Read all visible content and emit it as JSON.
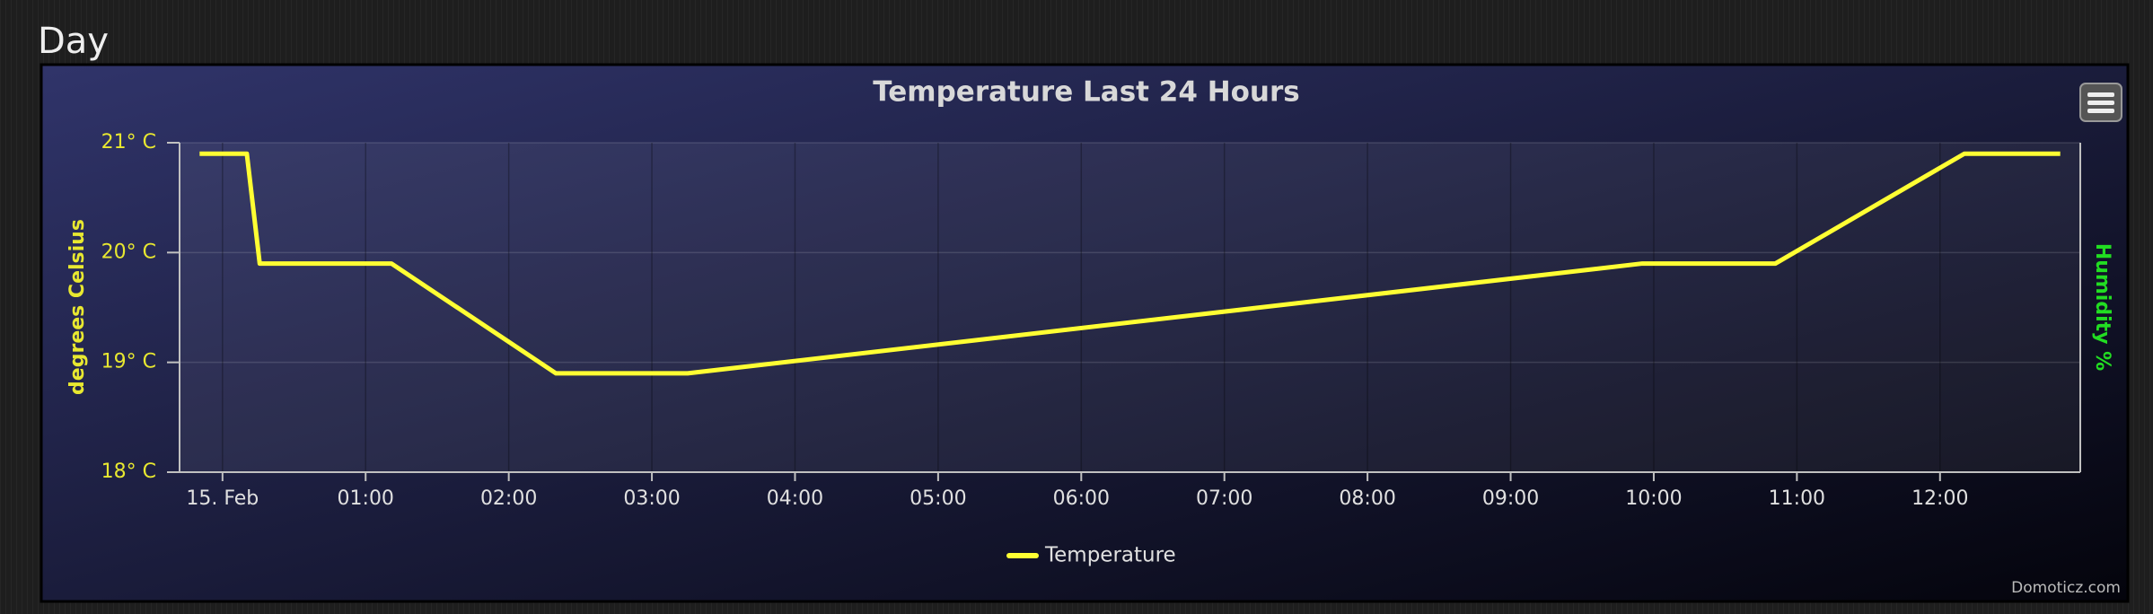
{
  "header": {
    "title": "Day"
  },
  "chart_data": {
    "type": "line",
    "title": "Temperature Last 24 Hours",
    "x": [
      -0.16,
      0.17,
      0.26,
      1.18,
      2.33,
      3.25,
      9.92,
      10.85,
      12.17,
      12.84
    ],
    "series": [
      {
        "name": "Temperature",
        "color": "#ffff33",
        "values": [
          20.9,
          20.9,
          19.9,
          19.9,
          18.9,
          18.9,
          19.9,
          19.9,
          20.9,
          20.9
        ]
      }
    ],
    "xlim": [
      -0.3,
      12.98
    ],
    "xticks": [
      {
        "value": 0,
        "label": "15. Feb"
      },
      {
        "value": 1,
        "label": "01:00"
      },
      {
        "value": 2,
        "label": "02:00"
      },
      {
        "value": 3,
        "label": "03:00"
      },
      {
        "value": 4,
        "label": "04:00"
      },
      {
        "value": 5,
        "label": "05:00"
      },
      {
        "value": 6,
        "label": "06:00"
      },
      {
        "value": 7,
        "label": "07:00"
      },
      {
        "value": 8,
        "label": "08:00"
      },
      {
        "value": 9,
        "label": "09:00"
      },
      {
        "value": 10,
        "label": "10:00"
      },
      {
        "value": 11,
        "label": "11:00"
      },
      {
        "value": 12,
        "label": "12:00"
      }
    ],
    "ylim": [
      18,
      21
    ],
    "yticks": [
      {
        "value": 18,
        "label": "18° C"
      },
      {
        "value": 19,
        "label": "19° C"
      },
      {
        "value": 20,
        "label": "20° C"
      },
      {
        "value": 21,
        "label": "21° C"
      }
    ],
    "ylabel": "degrees Celsius",
    "y2label": "Humidity %",
    "grid": true,
    "legend": "bottom",
    "credit": "Domoticz.com"
  }
}
